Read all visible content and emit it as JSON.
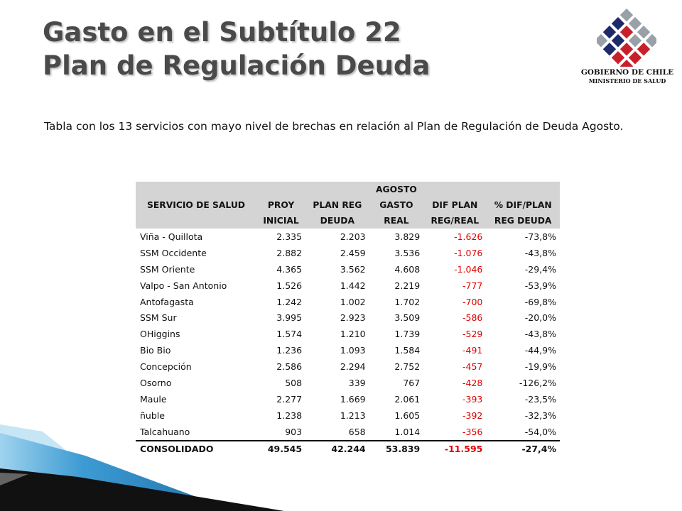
{
  "title": {
    "line1": "Gasto en el Subtítulo 22",
    "line2": "Plan de Regulación Deuda"
  },
  "logo": {
    "line1": "GOBIERNO DE CHILE",
    "line2": "MINISTERIO DE SALUD",
    "colors": [
      "#1f2a6b",
      "#c8202a",
      "#9aa0a8"
    ]
  },
  "intro": "Tabla con los 13 servicios con mayo nivel de brechas en relación al Plan de Regulación de Deuda Agosto.",
  "table": {
    "group_header": "AGOSTO",
    "headers": {
      "servicio": "SERVICIO DE SALUD",
      "proy_1": "PROY",
      "proy_2": "INICIAL",
      "plan_1": "PLAN REG",
      "plan_2": "DEUDA",
      "gasto_1": "GASTO",
      "gasto_2": "REAL",
      "dif_1": "DIF PLAN",
      "dif_2": "REG/REAL",
      "pct_1": "% DIF/PLAN",
      "pct_2": "REG DEUDA"
    },
    "rows": [
      {
        "servicio": "Viña - Quillota",
        "proy": "2.335",
        "plan": "2.203",
        "gasto": "3.829",
        "dif": "-1.626",
        "pct": "-73,8%"
      },
      {
        "servicio": "SSM Occidente",
        "proy": "2.882",
        "plan": "2.459",
        "gasto": "3.536",
        "dif": "-1.076",
        "pct": "-43,8%"
      },
      {
        "servicio": "SSM Oriente",
        "proy": "4.365",
        "plan": "3.562",
        "gasto": "4.608",
        "dif": "-1.046",
        "pct": "-29,4%"
      },
      {
        "servicio": "Valpo - San Antonio",
        "proy": "1.526",
        "plan": "1.442",
        "gasto": "2.219",
        "dif": "-777",
        "pct": "-53,9%"
      },
      {
        "servicio": "Antofagasta",
        "proy": "1.242",
        "plan": "1.002",
        "gasto": "1.702",
        "dif": "-700",
        "pct": "-69,8%"
      },
      {
        "servicio": "SSM Sur",
        "proy": "3.995",
        "plan": "2.923",
        "gasto": "3.509",
        "dif": "-586",
        "pct": "-20,0%"
      },
      {
        "servicio": "OHiggins",
        "proy": "1.574",
        "plan": "1.210",
        "gasto": "1.739",
        "dif": "-529",
        "pct": "-43,8%"
      },
      {
        "servicio": "Bio Bio",
        "proy": "1.236",
        "plan": "1.093",
        "gasto": "1.584",
        "dif": "-491",
        "pct": "-44,9%"
      },
      {
        "servicio": "Concepción",
        "proy": "2.586",
        "plan": "2.294",
        "gasto": "2.752",
        "dif": "-457",
        "pct": "-19,9%"
      },
      {
        "servicio": "Osorno",
        "proy": "508",
        "plan": "339",
        "gasto": "767",
        "dif": "-428",
        "pct": "-126,2%"
      },
      {
        "servicio": "Maule",
        "proy": "2.277",
        "plan": "1.669",
        "gasto": "2.061",
        "dif": "-393",
        "pct": "-23,5%"
      },
      {
        "servicio": "ñuble",
        "proy": "1.238",
        "plan": "1.213",
        "gasto": "1.605",
        "dif": "-392",
        "pct": "-32,3%"
      },
      {
        "servicio": "Talcahuano",
        "proy": "903",
        "plan": "658",
        "gasto": "1.014",
        "dif": "-356",
        "pct": "-54,0%"
      }
    ],
    "total": {
      "servicio": "CONSOLIDADO",
      "proy": "49.545",
      "plan": "42.244",
      "gasto": "53.839",
      "dif": "-11.595",
      "pct": "-27,4%"
    }
  },
  "colors": {
    "header_bg": "#d4d4d4",
    "negative": "#e00000",
    "title": "#4a4a4a",
    "ribbon_dark": "#111111",
    "ribbon_blue": "#2f8fc8",
    "ribbon_light": "#9fd3ee"
  }
}
